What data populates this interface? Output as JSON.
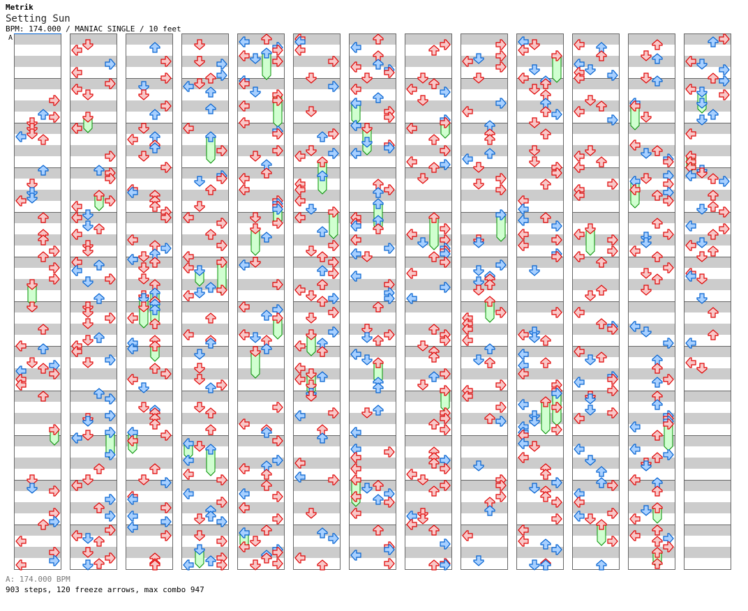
{
  "artist": "Metrik",
  "title": "Setting Sun",
  "info": "BPM: 174.000 / MANIAC SINGLE / 10 feet",
  "bpm_marker": "A",
  "bpm_legend": "A: 174.000 BPM",
  "stats": "903 steps, 120 freeze arrows, max combo 947",
  "chart": {
    "columns": 13,
    "measures_per_column": 12,
    "total_measures_with_notes": 152,
    "lanes": [
      "left",
      "down",
      "up",
      "right"
    ],
    "colors": {
      "quarter_fill": "#f8c8c8",
      "quarter_stroke": "#e00000",
      "eighth_fill": "#a8d0ff",
      "eighth_stroke": "#0060d0",
      "freeze_fill": "#d0ffd0",
      "freeze_stroke": "#009000",
      "stripe": "#cccccc",
      "border": "#666666",
      "bpm_line": "#0060d0"
    }
  }
}
